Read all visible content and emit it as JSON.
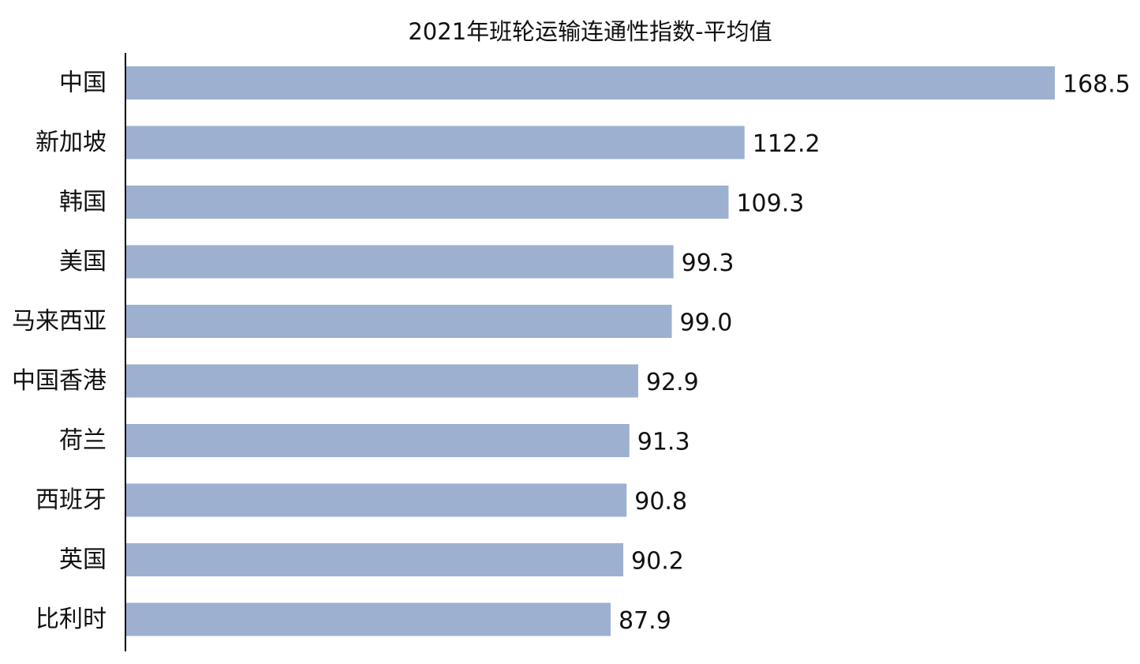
{
  "chart_data": {
    "type": "bar",
    "orientation": "horizontal",
    "title": "2021年班轮运输连通性指数-平均值",
    "xlabel": "",
    "ylabel": "",
    "categories": [
      "中国",
      "新加坡",
      "韩国",
      "美国",
      "马来西亚",
      "中国香港",
      "荷兰",
      "西班牙",
      "英国",
      "比利时"
    ],
    "values": [
      168.5,
      112.2,
      109.3,
      99.3,
      99.0,
      92.9,
      91.3,
      90.8,
      90.2,
      87.9
    ],
    "value_labels": [
      "168.5",
      "112.2",
      "109.3",
      "99.3",
      "99.0",
      "92.9",
      "91.3",
      "90.8",
      "90.2",
      "87.9"
    ],
    "xlim": [
      0,
      168.5
    ],
    "grid": false,
    "legend": "none",
    "colors": {
      "bar": "#9db0cf",
      "axis": "#000000",
      "text": "#111111"
    }
  }
}
